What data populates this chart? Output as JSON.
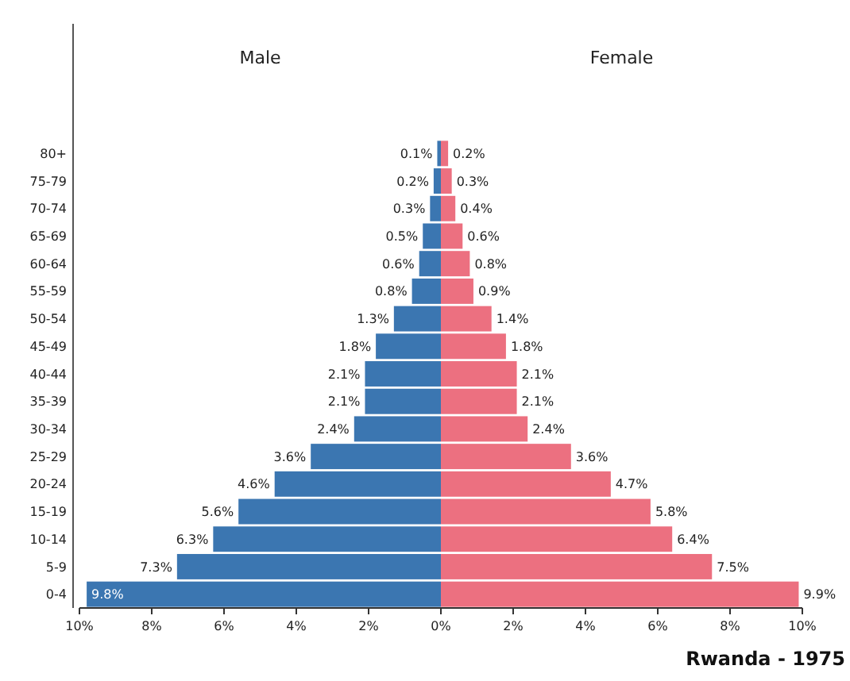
{
  "chart_data": [
    {
      "type": "bar",
      "orientation": "horizontal",
      "title": "Male",
      "categories": [
        "80+",
        "75-79",
        "70-74",
        "65-69",
        "60-64",
        "55-59",
        "50-54",
        "45-49",
        "40-44",
        "35-39",
        "30-34",
        "25-29",
        "20-24",
        "15-19",
        "10-14",
        "5-9",
        "0-4"
      ],
      "series": [
        {
          "color": "#3b76b1",
          "values": [
            0.1,
            0.2,
            0.3,
            0.5,
            0.6,
            0.8,
            1.3,
            1.8,
            2.1,
            2.1,
            2.4,
            3.6,
            4.6,
            5.6,
            6.3,
            7.3,
            9.8
          ],
          "value_labels": [
            "0.1%",
            "0.2%",
            "0.3%",
            "0.5%",
            "0.6%",
            "0.8%",
            "1.3%",
            "1.8%",
            "2.1%",
            "2.1%",
            "2.4%",
            "3.6%",
            "4.6%",
            "5.6%",
            "6.3%",
            "7.3%",
            "9.8%"
          ]
        }
      ],
      "xlim": [
        10,
        0
      ],
      "xticks": [
        {
          "value": 10,
          "label": "10%"
        },
        {
          "value": 8,
          "label": "8%"
        },
        {
          "value": 6,
          "label": "6%"
        },
        {
          "value": 4,
          "label": "4%"
        },
        {
          "value": 2,
          "label": "2%"
        },
        {
          "value": 0,
          "label": null
        }
      ]
    },
    {
      "type": "bar",
      "orientation": "horizontal",
      "title": "Female",
      "categories": [
        null,
        null,
        null,
        null,
        null,
        null,
        null,
        null,
        null,
        null,
        null,
        null,
        null,
        null,
        null,
        null,
        null
      ],
      "series": [
        {
          "color": "#ec7080",
          "values": [
            0.2,
            0.3,
            0.4,
            0.6,
            0.8,
            0.9,
            1.4,
            1.8,
            2.1,
            2.1,
            2.4,
            3.6,
            4.7,
            5.8,
            6.4,
            7.5,
            9.9
          ],
          "value_labels": [
            "0.2%",
            "0.3%",
            "0.4%",
            "0.6%",
            "0.8%",
            "0.9%",
            "1.4%",
            "1.8%",
            "2.1%",
            "2.1%",
            "2.4%",
            "3.6%",
            "4.7%",
            "5.8%",
            "6.4%",
            "7.5%",
            "9.9%"
          ]
        }
      ],
      "xlim": [
        0,
        10
      ],
      "xticks": [
        {
          "value": 0,
          "label": "0%"
        },
        {
          "value": 2,
          "label": "2%"
        },
        {
          "value": 4,
          "label": "4%"
        },
        {
          "value": 6,
          "label": "6%"
        },
        {
          "value": 8,
          "label": "8%"
        },
        {
          "value": 10,
          "label": "10%"
        }
      ],
      "tick_labels": "x",
      "annotations": [
        "Rwanda - 1975"
      ]
    }
  ]
}
